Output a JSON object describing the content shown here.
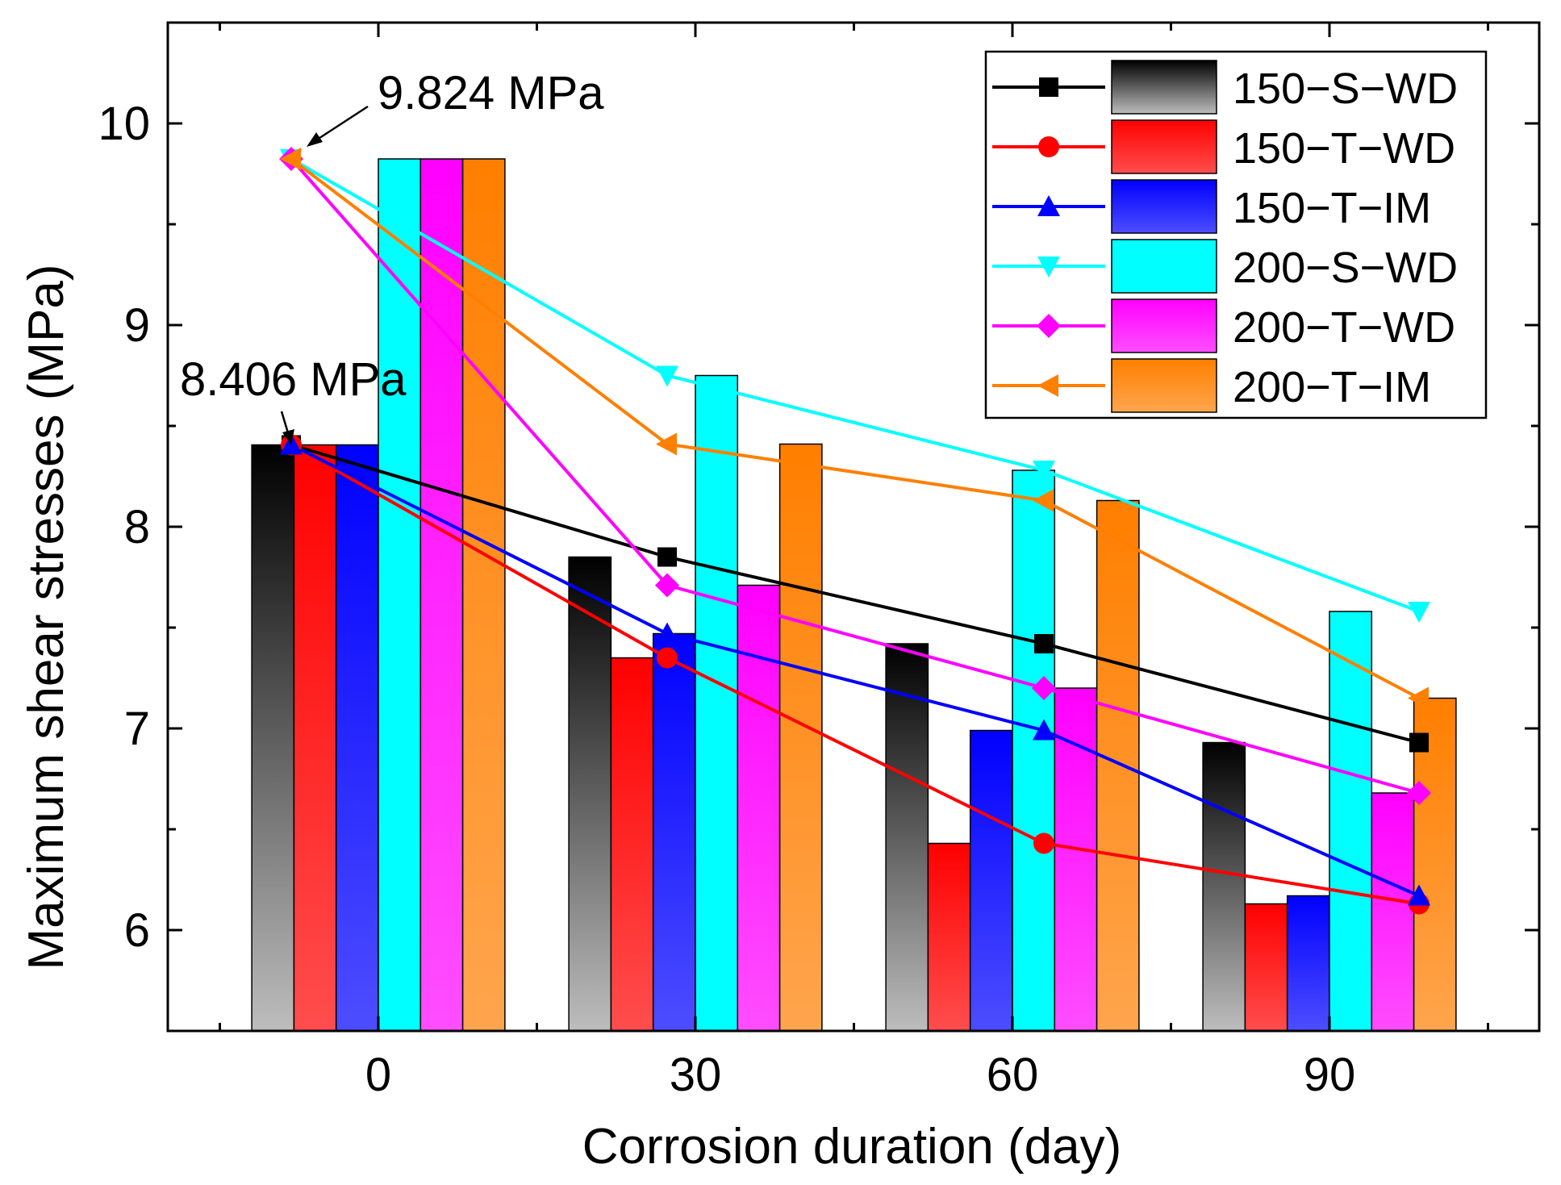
{
  "chart_data": {
    "type": "bar",
    "title": "",
    "xlabel": "Corrosion duration (day)",
    "ylabel": "Maximum shear stresses (MPa)",
    "categories": [
      "0",
      "30",
      "60",
      "90"
    ],
    "ylim": [
      5.5,
      10.5
    ],
    "yticks": [
      "6",
      "7",
      "8",
      "9",
      "10"
    ],
    "grid": false,
    "legend_position": "top-right",
    "series": [
      {
        "name": "150−S−WD",
        "color": "#000000",
        "marker": "square",
        "values": [
          8.406,
          7.85,
          7.42,
          6.93
        ]
      },
      {
        "name": "150−T−WD",
        "color": "#ff0000",
        "marker": "circle",
        "values": [
          8.406,
          7.35,
          6.43,
          6.13
        ]
      },
      {
        "name": "150−T−IM",
        "color": "#0000ff",
        "marker": "triangle-up",
        "values": [
          8.406,
          7.47,
          6.99,
          6.17
        ]
      },
      {
        "name": "200−S−WD",
        "color": "#00ffff",
        "marker": "triangle-down",
        "values": [
          9.824,
          8.75,
          8.28,
          7.58
        ]
      },
      {
        "name": "200−T−WD",
        "color": "#ff00ff",
        "marker": "diamond",
        "values": [
          9.824,
          7.71,
          7.2,
          6.68
        ]
      },
      {
        "name": "200−T−IM",
        "color": "#ff7f00",
        "marker": "triangle-left",
        "values": [
          9.824,
          8.41,
          8.13,
          7.15
        ]
      }
    ],
    "annotations": [
      {
        "text": "9.824 MPa",
        "value": 9.824
      },
      {
        "text": "8.406 MPa",
        "value": 8.406
      }
    ]
  }
}
